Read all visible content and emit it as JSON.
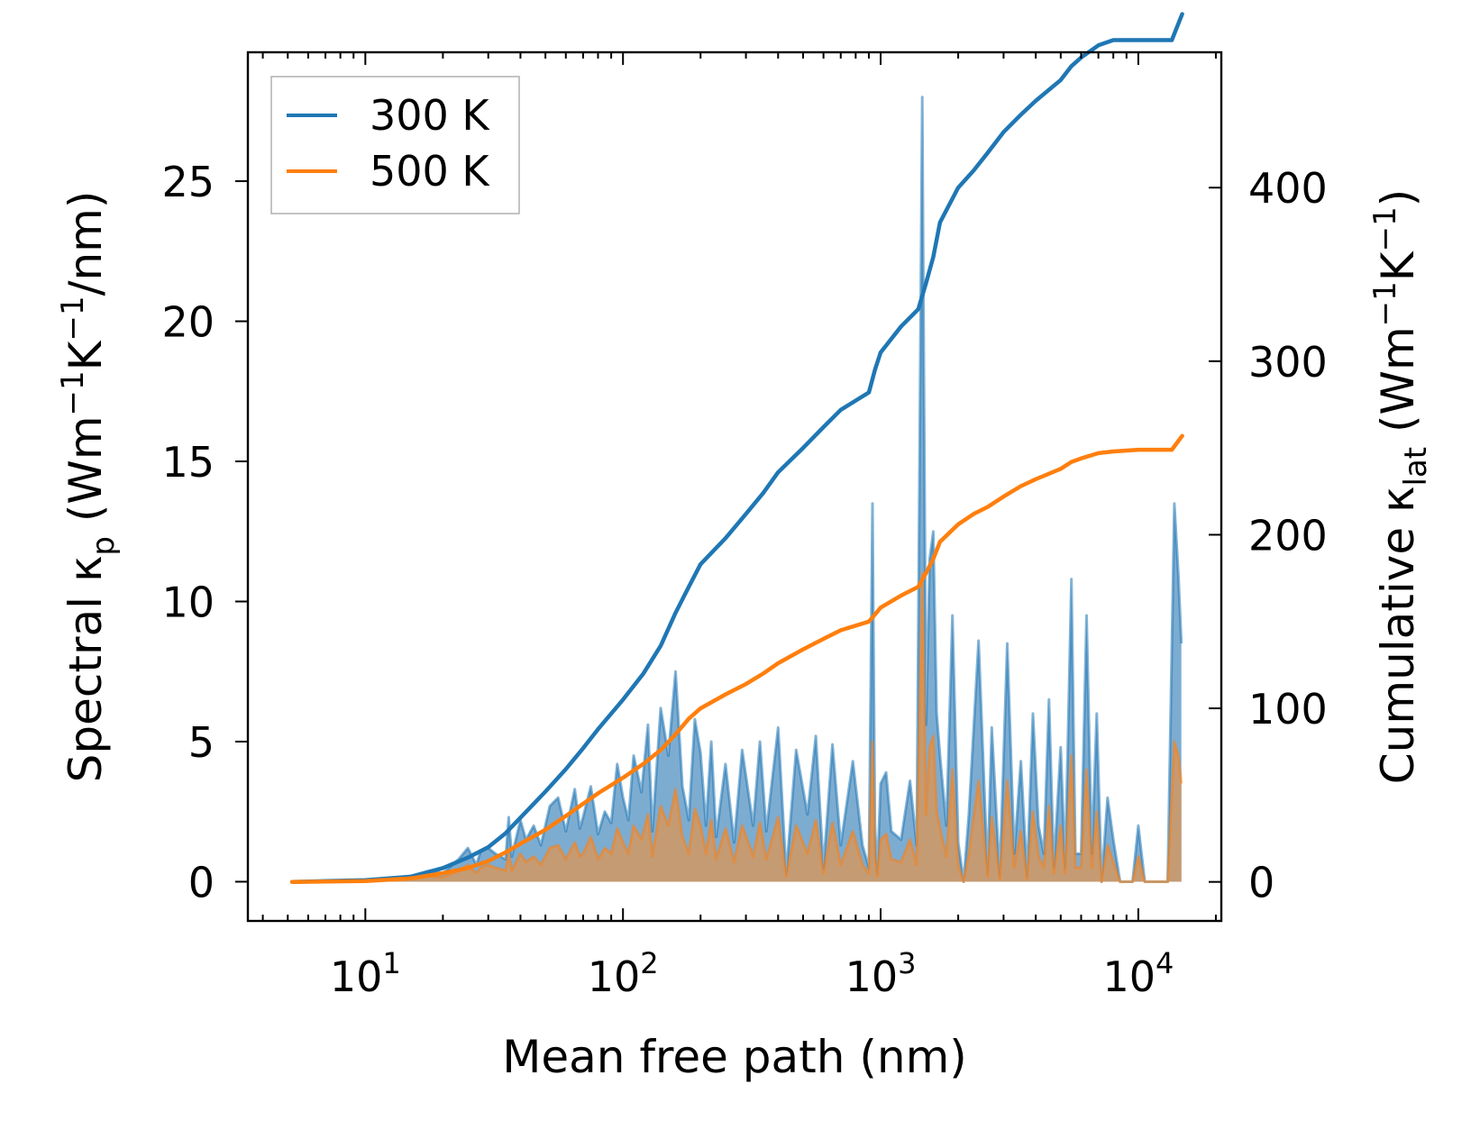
{
  "chart_data": {
    "type": "line",
    "xlabel": "Mean free path (nm)",
    "xscale": "log",
    "xlim": [
      3.5,
      21000
    ],
    "x_ticks": [
      {
        "value": 10,
        "base": "10",
        "exp": "1"
      },
      {
        "value": 100,
        "base": "10",
        "exp": "2"
      },
      {
        "value": 1000,
        "base": "10",
        "exp": "3"
      },
      {
        "value": 10000,
        "base": "10",
        "exp": "4"
      }
    ],
    "ylabel_left": {
      "pre": "Spectral κ",
      "sub": "p",
      "mid1": " (Wm",
      "sup1": "−1",
      "mid2": "K",
      "sup2": "−1",
      "post": "/nm)"
    },
    "ylim_left": [
      -1.4,
      29.6
    ],
    "yticks_left": [
      "0",
      "5",
      "10",
      "15",
      "20",
      "25"
    ],
    "ylabel_right": {
      "pre": "Cumulative κ",
      "sub": "lat",
      "mid1": " (Wm",
      "sup1": "−1",
      "mid2": "K",
      "sup2": "−1",
      "post": ")"
    },
    "ylim_right": [
      -22.5,
      478
    ],
    "yticks_right": [
      "0",
      "100",
      "200",
      "300",
      "400"
    ],
    "legend": {
      "position": "top-left",
      "entries": [
        "300 K",
        "500 K"
      ]
    },
    "colors": {
      "300K": "#1f77b4",
      "500K": "#ff7f0e",
      "fill300": "#6fa3cc",
      "fill500": "#c99a6e"
    },
    "spectral": {
      "300K": {
        "x": [
          5.2,
          8,
          12,
          15,
          18,
          20,
          23,
          25,
          27,
          28,
          30,
          32,
          35,
          36,
          37,
          40,
          42,
          45,
          48,
          52,
          56,
          60,
          65,
          68,
          70,
          75,
          80,
          85,
          90,
          95,
          100,
          105,
          110,
          118,
          125,
          130,
          140,
          150,
          160,
          170,
          180,
          190,
          200,
          210,
          220,
          230,
          250,
          270,
          290,
          320,
          340,
          360,
          400,
          430,
          470,
          520,
          560,
          600,
          650,
          700,
          780,
          850,
          900,
          930,
          950,
          970,
          1000,
          1050,
          1100,
          1200,
          1300,
          1380,
          1450,
          1500,
          1550,
          1600,
          1650,
          1700,
          1800,
          1900,
          2000,
          2100,
          2200,
          2400,
          2600,
          2700,
          2900,
          3100,
          3300,
          3500,
          3700,
          3900,
          4100,
          4300,
          4500,
          4700,
          5000,
          5200,
          5500,
          5700,
          6000,
          6300,
          6600,
          6900,
          7200,
          7600,
          8000,
          8500,
          9000,
          9500,
          10000,
          10600,
          11000,
          12000,
          13000,
          13800,
          14300,
          14700
        ],
        "y": [
          0,
          0,
          0.1,
          0.2,
          0.4,
          0.3,
          0.8,
          1.2,
          0.6,
          1.1,
          1.2,
          1.0,
          0.8,
          2.3,
          0.9,
          2.2,
          1.5,
          2.0,
          1.3,
          2.7,
          3.0,
          1.8,
          3.3,
          1.9,
          2.3,
          3.4,
          1.7,
          2.5,
          2.1,
          4.2,
          3.0,
          2.2,
          4.5,
          3.2,
          5.6,
          1.8,
          6.2,
          4.5,
          7.5,
          3.4,
          2.2,
          5.8,
          4.6,
          2.0,
          5.0,
          1.6,
          4.2,
          1.4,
          4.7,
          2.0,
          5.0,
          1.8,
          5.5,
          0.3,
          4.7,
          2.4,
          5.2,
          0.5,
          4.9,
          1.3,
          4.3,
          1.3,
          0.5,
          13.5,
          2.0,
          0.3,
          3.5,
          3.9,
          1.8,
          1.5,
          3.6,
          1.3,
          28.0,
          5.6,
          11.5,
          12.5,
          6.0,
          4.5,
          2.0,
          9.5,
          1.4,
          0,
          2.4,
          8.6,
          0.3,
          5.5,
          0.2,
          8.5,
          1.0,
          4.3,
          0.2,
          6.0,
          2.0,
          1.0,
          6.5,
          0.5,
          4.8,
          0.5,
          10.8,
          1.0,
          1.0,
          9.5,
          1.0,
          6.0,
          0,
          3.0,
          1.5,
          0,
          0,
          0,
          2.0,
          0,
          0,
          0,
          0,
          13.5,
          11.0,
          8.5
        ]
      },
      "500K": {
        "x": [
          5.2,
          8,
          12,
          15,
          18,
          20,
          23,
          25,
          27,
          28,
          30,
          32,
          35,
          36,
          37,
          40,
          42,
          45,
          48,
          52,
          56,
          60,
          65,
          68,
          70,
          75,
          80,
          85,
          90,
          95,
          100,
          105,
          110,
          118,
          125,
          130,
          140,
          150,
          160,
          170,
          180,
          190,
          200,
          210,
          220,
          230,
          250,
          270,
          290,
          320,
          340,
          360,
          400,
          430,
          470,
          520,
          560,
          600,
          650,
          700,
          780,
          850,
          900,
          930,
          950,
          970,
          1000,
          1050,
          1100,
          1200,
          1300,
          1380,
          1450,
          1500,
          1550,
          1600,
          1650,
          1700,
          1800,
          1900,
          2000,
          2100,
          2200,
          2400,
          2600,
          2700,
          2900,
          3100,
          3300,
          3500,
          3700,
          3900,
          4100,
          4300,
          4500,
          4700,
          5000,
          5200,
          5500,
          5700,
          6000,
          6300,
          6600,
          6900,
          7200,
          7600,
          8000,
          8500,
          9000,
          9500,
          10000,
          10600,
          11000,
          12000,
          13000,
          13800,
          14300,
          14700
        ],
        "y": [
          0,
          0,
          0.05,
          0.1,
          0.2,
          0.15,
          0.4,
          0.6,
          0.3,
          0.5,
          0.6,
          0.5,
          0.4,
          1.0,
          0.4,
          1.0,
          0.7,
          0.9,
          0.6,
          1.2,
          1.3,
          0.8,
          1.4,
          0.9,
          1.0,
          1.6,
          0.8,
          1.2,
          1.0,
          1.9,
          1.4,
          1.0,
          2.0,
          1.5,
          2.4,
          0.9,
          2.7,
          2.0,
          3.3,
          1.6,
          1.0,
          2.6,
          2.0,
          1.0,
          2.2,
          0.8,
          1.9,
          0.7,
          2.0,
          0.9,
          2.1,
          0.8,
          2.3,
          0.2,
          2.0,
          1.0,
          2.2,
          0.3,
          2.1,
          0.6,
          1.8,
          0.6,
          0.3,
          5.0,
          0.9,
          0.2,
          1.5,
          1.7,
          0.8,
          0.7,
          1.5,
          0.6,
          11.0,
          2.4,
          4.8,
          5.2,
          2.5,
          1.9,
          0.9,
          4.0,
          0.6,
          0,
          1.0,
          3.6,
          0.2,
          2.3,
          0.1,
          3.6,
          0.5,
          1.8,
          0.1,
          2.5,
          0.9,
          0.5,
          2.7,
          0.3,
          2.0,
          0.3,
          4.5,
          0.5,
          0.5,
          4.0,
          0.5,
          2.5,
          0,
          1.3,
          0.7,
          0,
          0,
          0,
          0.9,
          0,
          0,
          0,
          0,
          5.0,
          4.5,
          3.5
        ]
      }
    },
    "cumulative": {
      "300K": {
        "x": [
          5.2,
          10,
          15,
          20,
          25,
          30,
          35,
          40,
          50,
          60,
          70,
          80,
          100,
          120,
          140,
          160,
          180,
          200,
          250,
          300,
          350,
          400,
          500,
          600,
          700,
          900,
          950,
          1000,
          1200,
          1400,
          1500,
          1600,
          1700,
          2000,
          2300,
          2600,
          3000,
          3500,
          4000,
          5000,
          5500,
          6000,
          7000,
          8000,
          10000,
          12000,
          13500,
          14800
        ],
        "y": [
          0,
          1,
          3,
          8,
          14,
          20,
          28,
          37,
          52,
          65,
          77,
          88,
          105,
          120,
          136,
          155,
          170,
          183,
          198,
          212,
          224,
          236,
          250,
          262,
          272,
          282,
          295,
          305,
          320,
          330,
          345,
          360,
          380,
          400,
          410,
          420,
          432,
          442,
          450,
          462,
          470,
          475,
          482,
          485,
          485,
          485,
          485,
          500
        ]
      },
      "500K": {
        "x": [
          5.2,
          10,
          15,
          20,
          25,
          30,
          35,
          40,
          50,
          60,
          70,
          80,
          100,
          120,
          140,
          160,
          180,
          200,
          250,
          300,
          350,
          400,
          500,
          600,
          700,
          900,
          950,
          1000,
          1200,
          1400,
          1500,
          1600,
          1700,
          2000,
          2300,
          2600,
          3000,
          3500,
          4000,
          5000,
          5500,
          6000,
          7000,
          8000,
          10000,
          12000,
          13500,
          14800
        ],
        "y": [
          0,
          0.5,
          2,
          5,
          8,
          12,
          17,
          22,
          30,
          38,
          45,
          51,
          60,
          68,
          76,
          85,
          94,
          100,
          108,
          114,
          120,
          126,
          134,
          140,
          145,
          150,
          154,
          158,
          165,
          170,
          178,
          186,
          196,
          206,
          212,
          216,
          222,
          228,
          232,
          238,
          242,
          244,
          247,
          248,
          249,
          249,
          249,
          257
        ]
      }
    }
  }
}
